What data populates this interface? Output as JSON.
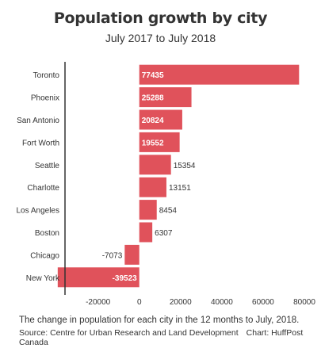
{
  "header": {
    "title": "Population growth by city",
    "subtitle": "July 2017 to July 2018"
  },
  "footer": {
    "note": "The change in population for each city in the 12 months to July, 2018.",
    "source": "Source: Centre for Urban Research and Land Development",
    "credit": "Chart: HuffPost Canada"
  },
  "colors": {
    "bar": "#e0525b",
    "text": "#333333",
    "label_inside": "#ffffff",
    "axis": "#333333",
    "gridline": "#eeeeee"
  },
  "chart_data": {
    "type": "bar",
    "orientation": "horizontal",
    "categories": [
      "Toronto",
      "Phoenix",
      "San Antonio",
      "Fort Worth",
      "Seattle",
      "Charlotte",
      "Los Angeles",
      "Boston",
      "Chicago",
      "New York"
    ],
    "values": [
      77435,
      25288,
      20824,
      19552,
      15354,
      13151,
      8454,
      6307,
      -7073,
      -39523
    ],
    "value_labels": [
      "77435",
      "25288",
      "20824",
      "19552",
      "15354",
      "13151",
      "8454",
      "6307",
      "-7073",
      "-39523"
    ],
    "x_ticks": [
      -20000,
      0,
      20000,
      40000,
      60000,
      80000
    ],
    "x_tick_labels": [
      "-20000",
      "0",
      "20000",
      "40000",
      "60000",
      "80000"
    ],
    "xlim": [
      -36000,
      80000
    ],
    "grid": false,
    "legend": "none"
  }
}
